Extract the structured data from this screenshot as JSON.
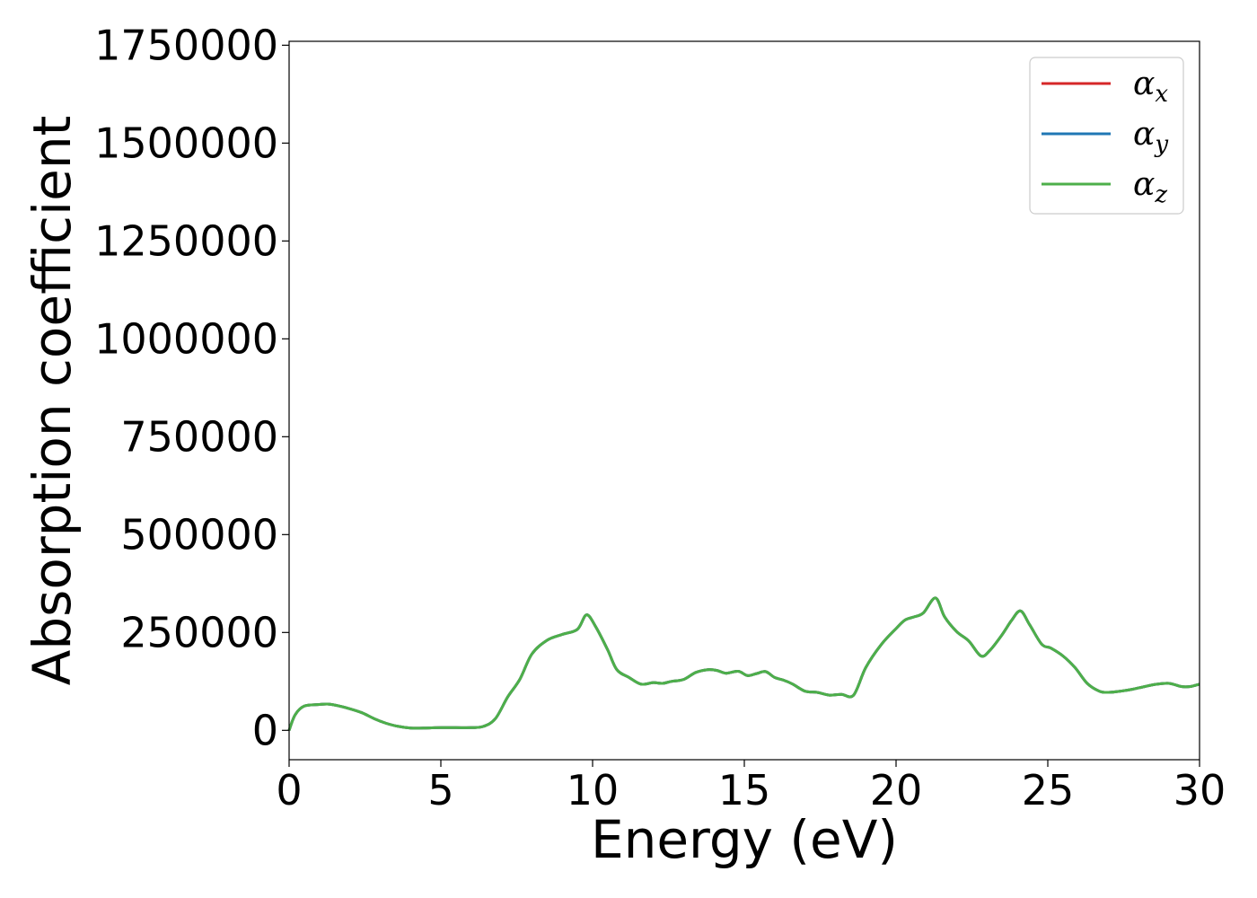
{
  "chart_data": {
    "type": "line",
    "xlabel": "Energy (eV)",
    "ylabel": "Absorption coefficient",
    "xlim": [
      0,
      30
    ],
    "ylim": [
      -75000,
      1760000
    ],
    "xticks": [
      0,
      5,
      10,
      15,
      20,
      25,
      30
    ],
    "xtick_labels": [
      "0",
      "5",
      "10",
      "15",
      "20",
      "25",
      "30"
    ],
    "yticks": [
      0,
      250000,
      500000,
      750000,
      1000000,
      1250000,
      1500000,
      1750000
    ],
    "ytick_labels": [
      "0",
      "250000",
      "500000",
      "750000",
      "1000000",
      "1250000",
      "1500000",
      "1750000"
    ],
    "grid": false,
    "legend_position": "top-right",
    "x": [
      0,
      0.2,
      0.5,
      1.0,
      1.3,
      1.6,
      2.0,
      2.4,
      2.8,
      3.2,
      3.6,
      4.0,
      4.5,
      5.0,
      5.5,
      6.0,
      6.4,
      6.8,
      7.2,
      7.6,
      8.0,
      8.5,
      9.0,
      9.5,
      9.8,
      10.1,
      10.5,
      10.8,
      11.2,
      11.6,
      12.0,
      12.3,
      12.6,
      13.0,
      13.4,
      13.8,
      14.1,
      14.4,
      14.8,
      15.1,
      15.4,
      15.7,
      16.0,
      16.3,
      16.6,
      17.0,
      17.4,
      17.8,
      18.2,
      18.6,
      19.0,
      19.5,
      20.0,
      20.3,
      20.6,
      20.9,
      21.3,
      21.6,
      22.0,
      22.4,
      22.8,
      23.1,
      23.5,
      23.8,
      24.1,
      24.4,
      24.8,
      25.1,
      25.5,
      25.9,
      26.3,
      26.7,
      27.0,
      27.4,
      27.8,
      28.2,
      28.6,
      29.0,
      29.4,
      29.7,
      30.0
    ],
    "series": [
      {
        "name": "α",
        "subscript": "x",
        "color": "#d62728",
        "values": [
          0,
          40000,
          62000,
          66000,
          67000,
          63000,
          55000,
          45000,
          30000,
          18000,
          10000,
          6000,
          6000,
          7000,
          7000,
          7000,
          10000,
          30000,
          85000,
          130000,
          195000,
          230000,
          245000,
          258000,
          295000,
          265000,
          205000,
          155000,
          135000,
          118000,
          122000,
          120000,
          125000,
          130000,
          148000,
          155000,
          153000,
          146000,
          151000,
          140000,
          145000,
          150000,
          135000,
          128000,
          118000,
          100000,
          97000,
          90000,
          92000,
          90000,
          160000,
          218000,
          260000,
          282000,
          290000,
          300000,
          338000,
          290000,
          252000,
          228000,
          190000,
          205000,
          245000,
          280000,
          305000,
          270000,
          220000,
          210000,
          190000,
          160000,
          120000,
          100000,
          97000,
          100000,
          105000,
          112000,
          118000,
          120000,
          112000,
          112000,
          118000
        ]
      },
      {
        "name": "α",
        "subscript": "y",
        "color": "#1f77b4",
        "values": [
          0,
          40000,
          62000,
          66000,
          67000,
          63000,
          55000,
          45000,
          30000,
          18000,
          10000,
          6000,
          6000,
          7000,
          7000,
          7000,
          10000,
          30000,
          85000,
          130000,
          195000,
          230000,
          245000,
          258000,
          295000,
          265000,
          205000,
          155000,
          135000,
          118000,
          122000,
          120000,
          125000,
          130000,
          148000,
          155000,
          153000,
          146000,
          151000,
          140000,
          145000,
          150000,
          135000,
          128000,
          118000,
          100000,
          97000,
          90000,
          92000,
          90000,
          160000,
          218000,
          260000,
          282000,
          290000,
          300000,
          338000,
          290000,
          252000,
          228000,
          190000,
          205000,
          245000,
          280000,
          305000,
          270000,
          220000,
          210000,
          190000,
          160000,
          120000,
          100000,
          97000,
          100000,
          105000,
          112000,
          118000,
          120000,
          112000,
          112000,
          118000
        ]
      },
      {
        "name": "α",
        "subscript": "z",
        "color": "#4daf4a",
        "values": [
          0,
          40000,
          62000,
          66000,
          67000,
          63000,
          55000,
          45000,
          30000,
          18000,
          10000,
          6000,
          6000,
          7000,
          7000,
          7000,
          10000,
          30000,
          85000,
          130000,
          195000,
          230000,
          245000,
          258000,
          295000,
          265000,
          205000,
          155000,
          135000,
          118000,
          122000,
          120000,
          125000,
          130000,
          148000,
          155000,
          153000,
          146000,
          151000,
          140000,
          145000,
          150000,
          135000,
          128000,
          118000,
          100000,
          97000,
          90000,
          92000,
          90000,
          160000,
          218000,
          260000,
          282000,
          290000,
          300000,
          338000,
          290000,
          252000,
          228000,
          190000,
          205000,
          245000,
          280000,
          305000,
          270000,
          220000,
          210000,
          190000,
          160000,
          120000,
          100000,
          97000,
          100000,
          105000,
          112000,
          118000,
          120000,
          112000,
          112000,
          118000
        ]
      }
    ]
  }
}
